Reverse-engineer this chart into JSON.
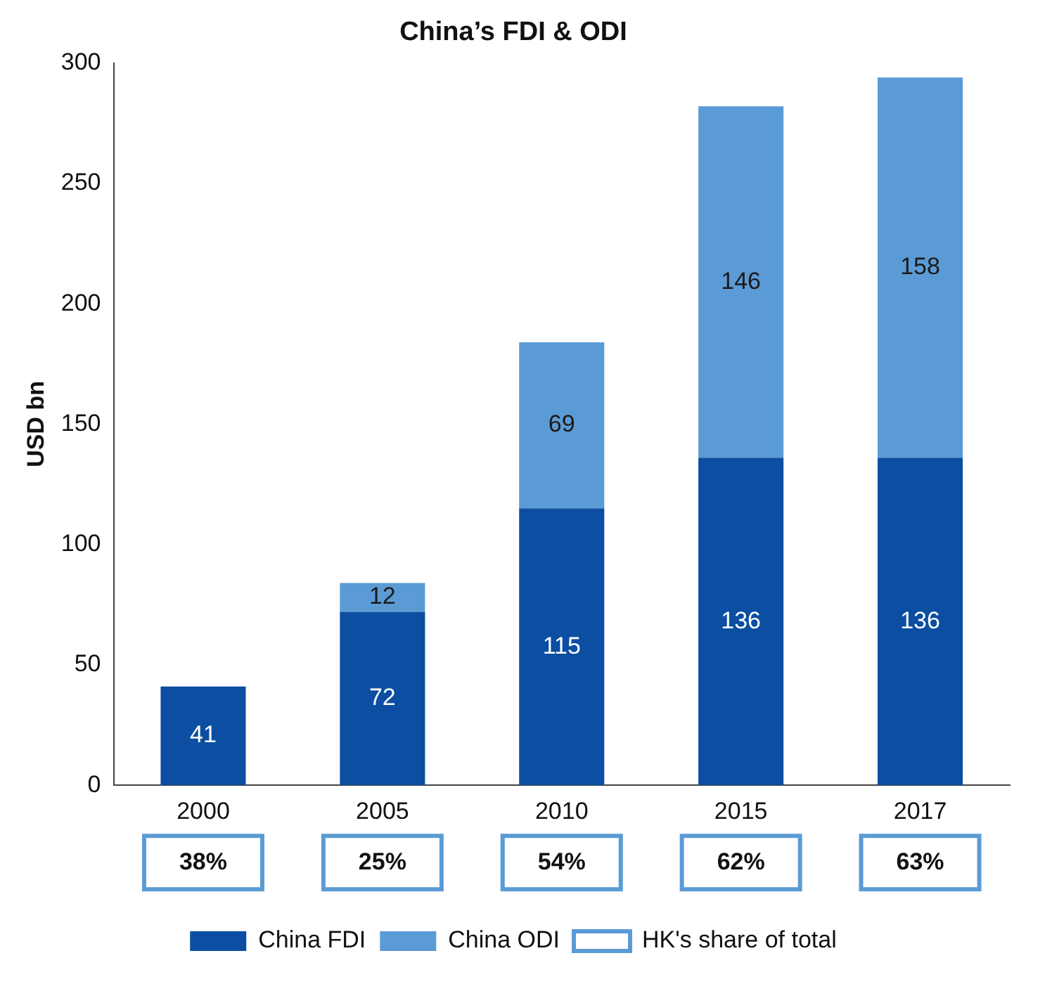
{
  "chart_data": {
    "type": "bar",
    "title": "China’s FDI & ODI",
    "ylabel": "USD bn",
    "categories": [
      "2000",
      "2005",
      "2010",
      "2015",
      "2017"
    ],
    "series": [
      {
        "name": "China FDI",
        "color": "#0b4ea2",
        "values": [
          41,
          72,
          115,
          136,
          136
        ]
      },
      {
        "name": "China ODI",
        "color": "#5b9bd5",
        "values": [
          null,
          12,
          69,
          146,
          158
        ]
      }
    ],
    "stacked": true,
    "ylim": [
      0,
      300
    ],
    "yticks": [
      0,
      50,
      100,
      150,
      200,
      250,
      300
    ],
    "grid": false,
    "legend": "bottom",
    "data_labels": true,
    "annotations": [
      "38%",
      "25%",
      "54%",
      "62%",
      "63%",
      "HK's share of total"
    ]
  }
}
